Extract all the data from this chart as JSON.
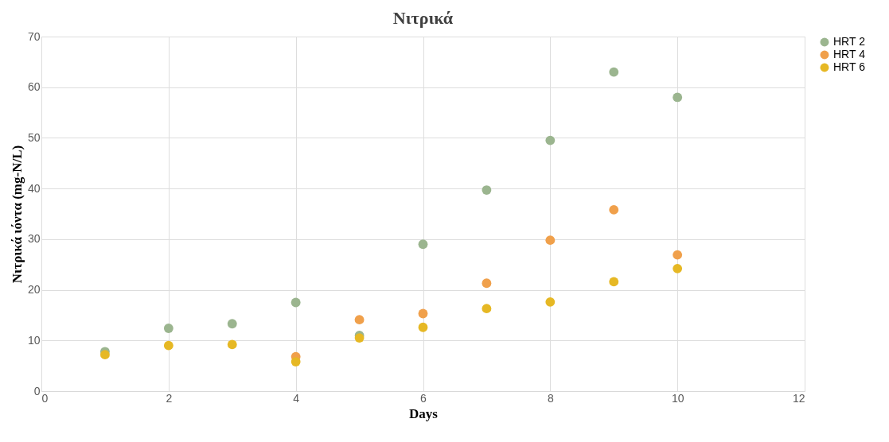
{
  "chart_data": {
    "type": "scatter",
    "title": "Νιτρικά",
    "xlabel": "Days",
    "ylabel": "Νιτρικά ιόντα (mg-N/L)",
    "x": [
      1,
      2,
      3,
      4,
      5,
      6,
      7,
      8,
      9,
      10
    ],
    "series": [
      {
        "name": "HRT 2",
        "color": "#9bb58f",
        "values": [
          7.8,
          12.4,
          13.3,
          17.5,
          11,
          29,
          39.7,
          49.5,
          63,
          58
        ]
      },
      {
        "name": "HRT 4",
        "color": "#f0a04b",
        "values": [
          null,
          null,
          null,
          6.8,
          14.1,
          15.3,
          21.3,
          29.8,
          35.8,
          26.9
        ]
      },
      {
        "name": "HRT 6",
        "color": "#e6b824",
        "values": [
          7.2,
          9,
          9.2,
          5.8,
          10.5,
          12.6,
          16.3,
          17.6,
          21.6,
          24.2
        ]
      }
    ],
    "xlim": [
      0,
      12
    ],
    "xticks": [
      0,
      2,
      4,
      6,
      8,
      10,
      12
    ],
    "ylim": [
      0,
      70
    ],
    "yticks": [
      0,
      10,
      20,
      30,
      40,
      50,
      60,
      70
    ],
    "grid": true,
    "legend": "right",
    "marker": "circle"
  }
}
